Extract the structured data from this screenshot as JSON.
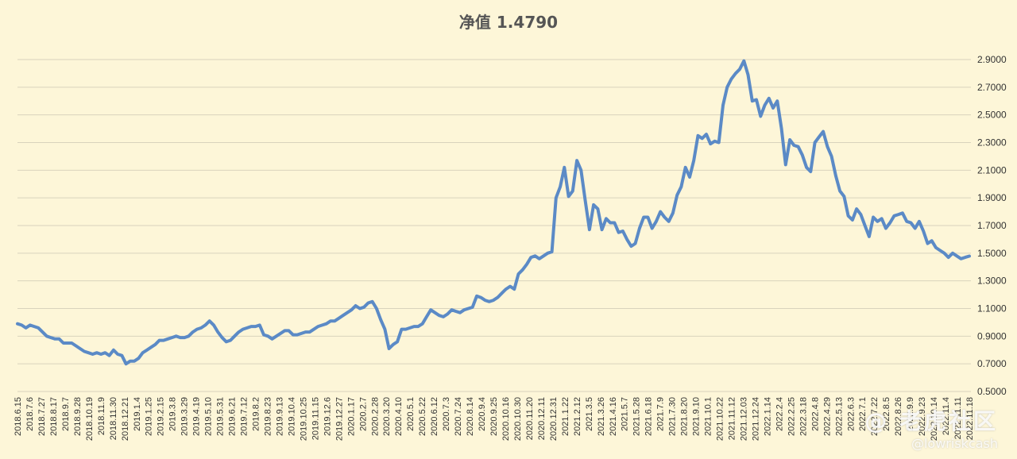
{
  "watermark": {
    "main": "@ 老虎社区",
    "sub": "@lowriskcash"
  },
  "chart_data": {
    "type": "line",
    "title": "净值 1.4790",
    "xlabel": "",
    "ylabel": "",
    "ylim": [
      0.5,
      2.9
    ],
    "yticks": [
      "0.5000",
      "0.7000",
      "0.9000",
      "1.1000",
      "1.3000",
      "1.5000",
      "1.7000",
      "1.9000",
      "2.1000",
      "2.3000",
      "2.5000",
      "2.7000",
      "2.9000"
    ],
    "y_axis_position": "right",
    "grid": true,
    "line_color": "#5b8ac6",
    "x_tick_labels": [
      "2018.6.15",
      "2018.7.6",
      "2018.7.27",
      "2018.8.17",
      "2018.9.7",
      "2018.9.28",
      "2018.10.19",
      "2018.11.9",
      "2018.11.30",
      "2018.12.21",
      "2019.1.4",
      "2019.1.25",
      "2019.2.15",
      "2019.3.8",
      "2019.3.29",
      "2019.4.19",
      "2019.5.10",
      "2019.5.31",
      "2019.6.21",
      "2019.7.12",
      "2019.8.2",
      "2019.8.23",
      "2019.9.13",
      "2019.10.4",
      "2019.10.25",
      "2019.11.15",
      "2019.12.6",
      "2019.12.27",
      "2020.1.17",
      "2020.2.7",
      "2020.2.28",
      "2020.3.20",
      "2020.4.10",
      "2020.5.1",
      "2020.5.22",
      "2020.6.12",
      "2020.7.3",
      "2020.7.24",
      "2020.8.14",
      "2020.9.4",
      "2020.9.25",
      "2020.10.16",
      "2020.10.30",
      "2020.11.20",
      "2020.12.11",
      "2020.12.31",
      "2021.1.22",
      "2021.2.12",
      "2021.3.5",
      "2021.3.26",
      "2021.4.16",
      "2021.5.7",
      "2021.5.28",
      "2021.6.18",
      "2021.7.9",
      "2021.7.30",
      "2021.8.20",
      "2021.9.10",
      "2021.10.1",
      "2021.10.22",
      "2021.11.12",
      "2021.12.03",
      "2021.12.24",
      "2022.1.14",
      "2022.2.4",
      "2022.2.25",
      "2022.3.18",
      "2022.4.8",
      "2022.4.29",
      "2022.5.13",
      "2022.6.3",
      "2022.7.1",
      "2022.7.22",
      "2022.8.5",
      "2022.8.26",
      "2022.9.9",
      "2022.9.23",
      "2022.10.14",
      "2022.11.4",
      "2022.11.11",
      "2022.11.18"
    ],
    "series": [
      {
        "values": [
          0.99,
          0.98,
          0.96,
          0.98,
          0.97,
          0.96,
          0.93,
          0.9,
          0.89,
          0.88,
          0.88,
          0.85,
          0.85,
          0.85,
          0.83,
          0.81,
          0.79,
          0.78,
          0.77,
          0.78,
          0.77,
          0.78,
          0.76,
          0.8,
          0.77,
          0.76,
          0.7,
          0.72,
          0.72,
          0.74,
          0.78,
          0.8,
          0.82,
          0.84,
          0.87,
          0.87,
          0.88,
          0.89,
          0.9,
          0.89,
          0.89,
          0.9,
          0.93,
          0.95,
          0.96,
          0.98,
          1.01,
          0.98,
          0.93,
          0.89,
          0.86,
          0.87,
          0.9,
          0.93,
          0.95,
          0.96,
          0.97,
          0.97,
          0.98,
          0.91,
          0.9,
          0.88,
          0.9,
          0.92,
          0.94,
          0.94,
          0.91,
          0.91,
          0.92,
          0.93,
          0.93,
          0.95,
          0.97,
          0.98,
          0.99,
          1.01,
          1.01,
          1.03,
          1.05,
          1.07,
          1.09,
          1.12,
          1.1,
          1.11,
          1.14,
          1.15,
          1.1,
          1.02,
          0.95,
          0.81,
          0.84,
          0.86,
          0.95,
          0.95,
          0.96,
          0.97,
          0.97,
          0.99,
          1.04,
          1.09,
          1.07,
          1.05,
          1.04,
          1.06,
          1.09,
          1.08,
          1.07,
          1.09,
          1.1,
          1.11,
          1.19,
          1.18,
          1.16,
          1.15,
          1.16,
          1.18,
          1.21,
          1.24,
          1.26,
          1.24,
          1.35,
          1.38,
          1.42,
          1.47,
          1.48,
          1.46,
          1.48,
          1.5,
          1.51,
          1.9,
          1.98,
          2.12,
          1.91,
          1.95,
          2.17,
          2.1,
          1.88,
          1.67,
          1.85,
          1.82,
          1.67,
          1.75,
          1.72,
          1.72,
          1.65,
          1.66,
          1.6,
          1.55,
          1.57,
          1.68,
          1.76,
          1.76,
          1.68,
          1.73,
          1.8,
          1.76,
          1.73,
          1.79,
          1.92,
          1.98,
          2.12,
          2.05,
          2.17,
          2.35,
          2.33,
          2.36,
          2.29,
          2.31,
          2.3,
          2.57,
          2.7,
          2.76,
          2.8,
          2.83,
          2.89,
          2.79,
          2.6,
          2.61,
          2.49,
          2.57,
          2.62,
          2.55,
          2.6,
          2.4,
          2.14,
          2.32,
          2.28,
          2.27,
          2.21,
          2.12,
          2.09,
          2.3,
          2.34,
          2.38,
          2.27,
          2.2,
          2.06,
          1.95,
          1.91,
          1.77,
          1.74,
          1.82,
          1.78,
          1.7,
          1.62,
          1.76,
          1.73,
          1.75,
          1.68,
          1.72,
          1.77,
          1.78,
          1.79,
          1.73,
          1.72,
          1.68,
          1.73,
          1.66,
          1.57,
          1.59,
          1.54,
          1.52,
          1.5,
          1.47,
          1.5,
          1.48,
          1.46,
          1.47,
          1.479
        ]
      }
    ]
  }
}
